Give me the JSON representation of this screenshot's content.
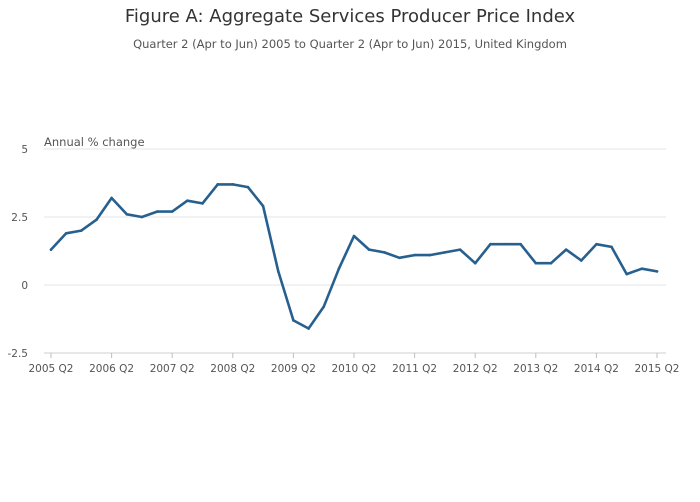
{
  "title": "Figure A: Aggregate Services Producer Price Index",
  "subtitle": "Quarter 2 (Apr to Jun) 2005 to Quarter 2 (Apr to Jun) 2015, United Kingdom",
  "colors": {
    "line": "#27608f",
    "grid": "#e6e6e6",
    "text": "#555555"
  },
  "chart_data": {
    "type": "line",
    "title": "Figure A: Aggregate Services Producer Price Index",
    "subtitle": "Quarter 2 (Apr to Jun) 2005 to Quarter 2 (Apr to Jun) 2015, United Kingdom",
    "ylabel": "Annual % change",
    "xlabel": "",
    "ylim": [
      -2.5,
      5
    ],
    "yticks": [
      -2.5,
      0,
      2.5,
      5
    ],
    "yticklabels": [
      "-2.5",
      "0",
      "2.5",
      "5"
    ],
    "grid": true,
    "xticklabels": [
      "2005 Q2",
      "2006 Q2",
      "2007 Q2",
      "2008 Q2",
      "2009 Q2",
      "2010 Q2",
      "2011 Q2",
      "2012 Q2",
      "2013 Q2",
      "2014 Q2",
      "2015 Q2"
    ],
    "x": [
      "2005 Q2",
      "2005 Q3",
      "2005 Q4",
      "2006 Q1",
      "2006 Q2",
      "2006 Q3",
      "2006 Q4",
      "2007 Q1",
      "2007 Q2",
      "2007 Q3",
      "2007 Q4",
      "2008 Q1",
      "2008 Q2",
      "2008 Q3",
      "2008 Q4",
      "2009 Q1",
      "2009 Q2",
      "2009 Q3",
      "2009 Q4",
      "2010 Q1",
      "2010 Q2",
      "2010 Q3",
      "2010 Q4",
      "2011 Q1",
      "2011 Q2",
      "2011 Q3",
      "2011 Q4",
      "2012 Q1",
      "2012 Q2",
      "2012 Q3",
      "2012 Q4",
      "2013 Q1",
      "2013 Q2",
      "2013 Q3",
      "2013 Q4",
      "2014 Q1",
      "2014 Q2",
      "2014 Q3",
      "2014 Q4",
      "2015 Q1",
      "2015 Q2"
    ],
    "series": [
      {
        "values": [
          1.3,
          1.9,
          2.0,
          2.4,
          3.2,
          2.6,
          2.5,
          2.7,
          2.7,
          3.1,
          3.0,
          3.7,
          3.7,
          3.6,
          2.9,
          0.5,
          -1.3,
          -1.6,
          -0.8,
          0.6,
          1.8,
          1.3,
          1.2,
          1.0,
          1.1,
          1.1,
          1.2,
          1.3,
          0.8,
          1.5,
          1.5,
          1.5,
          0.8,
          0.8,
          1.3,
          0.9,
          1.5,
          1.4,
          0.4,
          0.6,
          0.5
        ]
      }
    ]
  }
}
